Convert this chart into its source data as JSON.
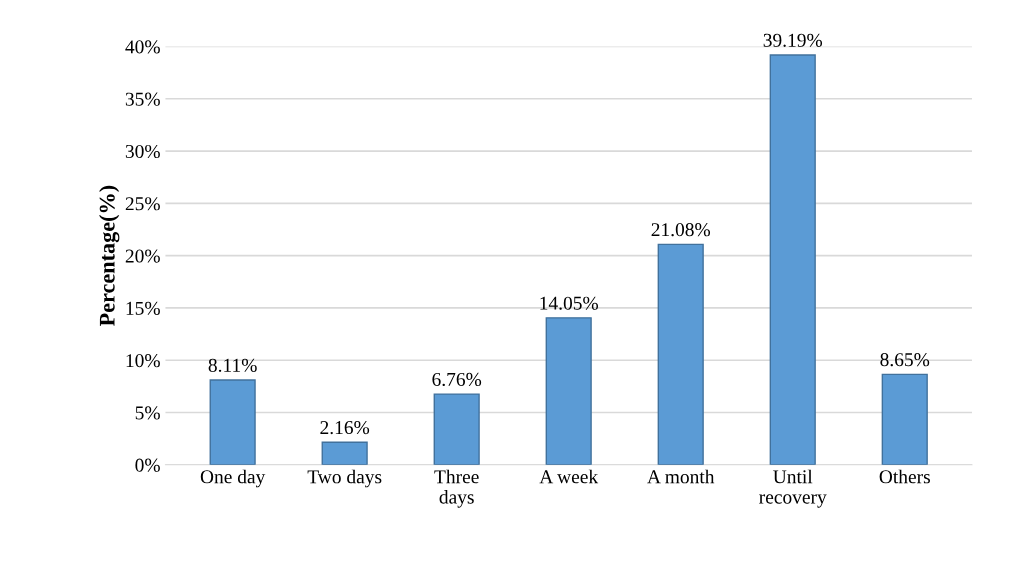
{
  "chart_data": {
    "type": "bar",
    "ylabel": "Percentage(%)",
    "categories": [
      "One day",
      "Two days",
      "Three\ndays",
      "A week",
      "A month",
      "Until\nrecovery",
      "Others"
    ],
    "values": [
      8.11,
      2.16,
      6.76,
      14.05,
      21.08,
      39.19,
      8.65
    ],
    "value_labels": [
      "8.11%",
      "2.16%",
      "6.76%",
      "14.05%",
      "21.08%",
      "39.19%",
      "8.65%"
    ],
    "color": "#5b9bd5",
    "ylim": [
      0,
      40
    ],
    "yticks": [
      {
        "value": 0,
        "label": "0%"
      },
      {
        "value": 5,
        "label": "5%"
      },
      {
        "value": 10,
        "label": "10%"
      },
      {
        "value": 15,
        "label": "15%"
      },
      {
        "value": 20,
        "label": "20%"
      },
      {
        "value": 25,
        "label": "25%"
      },
      {
        "value": 30,
        "label": "30%"
      },
      {
        "value": 35,
        "label": "35%"
      },
      {
        "value": 40,
        "label": "40%"
      }
    ],
    "grid": "y"
  }
}
